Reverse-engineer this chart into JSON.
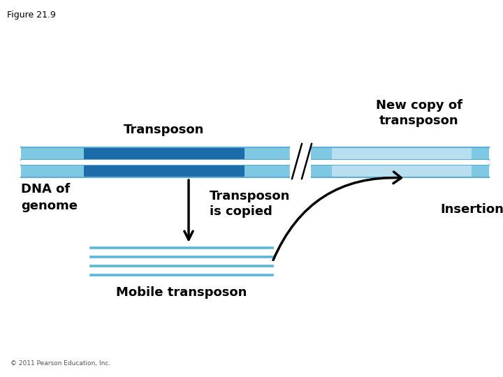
{
  "title": "Figure 21.9",
  "bg_color": "#ffffff",
  "light_blue": "#7EC8E3",
  "dark_blue": "#1B6CA8",
  "mid_blue": "#5BAFD6",
  "pale_blue": "#B8DFF0",
  "label_transposon": "Transposon",
  "label_new_copy": "New copy of\ntransposon",
  "label_dna": "DNA of\ngenome",
  "label_copied": "Transposon\nis copied",
  "label_mobile": "Mobile transposon",
  "label_insertion": "Insertion",
  "copyright": "© 2011 Pearson Education, Inc."
}
